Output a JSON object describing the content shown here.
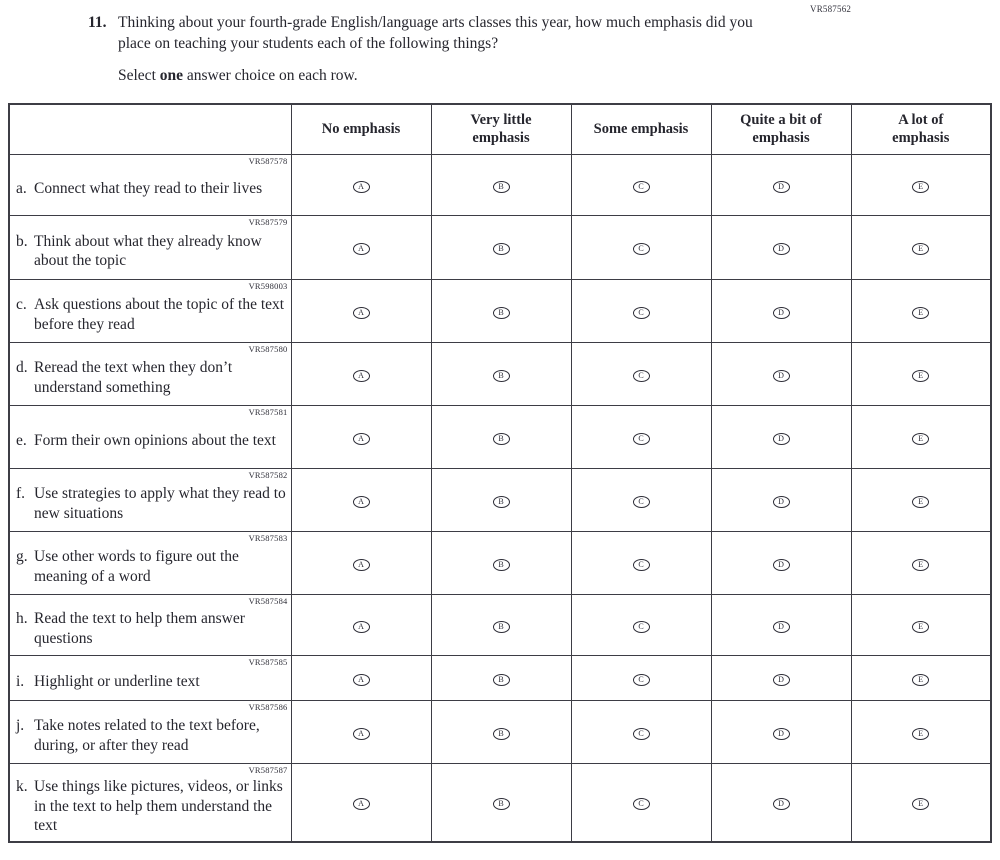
{
  "page": {
    "code": "VR587562"
  },
  "question": {
    "number": "11.",
    "text": "Thinking about your fourth-grade English/language arts classes this year, how much emphasis did you place on teaching your students each of the following things?",
    "instruction_prefix": "Select ",
    "instruction_bold": "one",
    "instruction_suffix": " answer choice on each row."
  },
  "table": {
    "columns": [
      "No emphasis",
      "Very little\nemphasis",
      "Some emphasis",
      "Quite a bit of\nemphasis",
      "A lot of\nemphasis"
    ],
    "options": [
      "A",
      "B",
      "C",
      "D",
      "E"
    ],
    "rows": [
      {
        "code": "VR587578",
        "letter": "a.",
        "text": "Connect what they read to their lives"
      },
      {
        "code": "VR587579",
        "letter": "b.",
        "text": "Think about what they already know about the topic"
      },
      {
        "code": "VR598003",
        "letter": "c.",
        "text": "Ask questions about the topic of the text before they read"
      },
      {
        "code": "VR587580",
        "letter": "d.",
        "text": "Reread the text when they don’t understand something"
      },
      {
        "code": "VR587581",
        "letter": "e.",
        "text": "Form their own opinions about the text"
      },
      {
        "code": "VR587582",
        "letter": "f.",
        "text": "Use strategies to apply what they read to new situations"
      },
      {
        "code": "VR587583",
        "letter": "g.",
        "text": "Use other words to figure out the meaning of a word"
      },
      {
        "code": "VR587584",
        "letter": "h.",
        "text": "Read the text to help them answer questions"
      },
      {
        "code": "VR587585",
        "letter": "i.",
        "text": "Highlight or underline text"
      },
      {
        "code": "VR587586",
        "letter": "j.",
        "text": "Take notes related to the text before, during, or after they read"
      },
      {
        "code": "VR587587",
        "letter": "k.",
        "text": "Use things like pictures, videos, or links in the text to help them understand the text"
      }
    ]
  }
}
